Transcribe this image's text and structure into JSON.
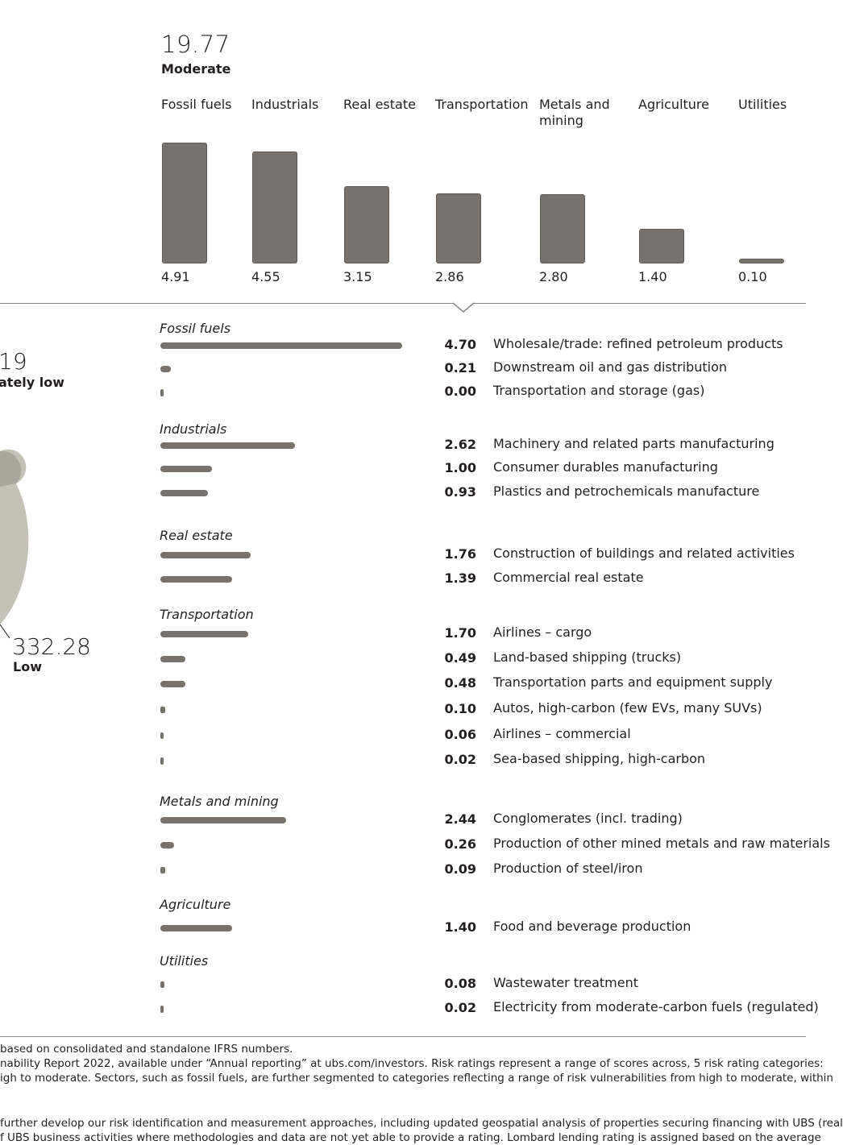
{
  "summary": {
    "total": "19.77",
    "rating": "Moderate"
  },
  "pie_labels": {
    "partial_value": "19",
    "partial_rating": "ately low",
    "low_value": "332.28",
    "low_rating": "Low"
  },
  "colors": {
    "bar": "#77736c",
    "pie_light": "#c4c1b6",
    "pie_mid": "#a8a59b",
    "divider": "#8a8782"
  },
  "chart_data": [
    {
      "type": "bar",
      "title": "19.77 Moderate",
      "categories": [
        "Fossil fuels",
        "Industrials",
        "Real estate",
        "Transportation",
        "Metals and mining",
        "Agriculture",
        "Utilities"
      ],
      "values": [
        4.91,
        4.55,
        3.15,
        2.86,
        2.8,
        1.4,
        0.1
      ],
      "value_labels": [
        "4.91",
        "4.55",
        "3.15",
        "2.86",
        "2.80",
        "1.40",
        "0.10"
      ],
      "ylim": [
        0,
        4.91
      ]
    },
    {
      "type": "bar",
      "orientation": "horizontal",
      "groups": [
        {
          "name": "Fossil fuels",
          "items": [
            {
              "value": 4.7,
              "label": "4.70",
              "name": "Wholesale/trade: refined petroleum products"
            },
            {
              "value": 0.21,
              "label": "0.21",
              "name": "Downstream oil and gas distribution"
            },
            {
              "value": 0.0,
              "label": "0.00",
              "name": "Transportation and storage (gas)"
            }
          ]
        },
        {
          "name": "Industrials",
          "items": [
            {
              "value": 2.62,
              "label": "2.62",
              "name": "Machinery and related parts manufacturing"
            },
            {
              "value": 1.0,
              "label": "1.00",
              "name": "Consumer durables manufacturing"
            },
            {
              "value": 0.93,
              "label": "0.93",
              "name": "Plastics and petrochemicals manufacture"
            }
          ]
        },
        {
          "name": "Real estate",
          "items": [
            {
              "value": 1.76,
              "label": "1.76",
              "name": "Construction of buildings and related activities"
            },
            {
              "value": 1.39,
              "label": "1.39",
              "name": "Commercial real estate"
            }
          ]
        },
        {
          "name": "Transportation",
          "items": [
            {
              "value": 1.7,
              "label": "1.70",
              "name": "Airlines – cargo"
            },
            {
              "value": 0.49,
              "label": "0.49",
              "name": "Land-based shipping (trucks)"
            },
            {
              "value": 0.48,
              "label": "0.48",
              "name": "Transportation parts and equipment supply"
            },
            {
              "value": 0.1,
              "label": "0.10",
              "name": "Autos, high-carbon (few EVs, many SUVs)"
            },
            {
              "value": 0.06,
              "label": "0.06",
              "name": "Airlines – commercial"
            },
            {
              "value": 0.02,
              "label": "0.02",
              "name": "Sea-based shipping, high-carbon"
            }
          ]
        },
        {
          "name": "Metals and mining",
          "items": [
            {
              "value": 2.44,
              "label": "2.44",
              "name": "Conglomerates (incl. trading)"
            },
            {
              "value": 0.26,
              "label": "0.26",
              "name": "Production of other mined metals and raw materials"
            },
            {
              "value": 0.09,
              "label": "0.09",
              "name": "Production of steel/iron"
            }
          ]
        },
        {
          "name": "Agriculture",
          "items": [
            {
              "value": 1.4,
              "label": "1.40",
              "name": "Food and beverage production"
            }
          ]
        },
        {
          "name": "Utilities",
          "items": [
            {
              "value": 0.08,
              "label": "0.08",
              "name": "Wastewater treatment"
            },
            {
              "value": 0.02,
              "label": "0.02",
              "name": "Electricity from moderate-carbon fuels (regulated)"
            }
          ]
        }
      ]
    }
  ],
  "footnotes": [
    "based on consolidated and standalone IFRS numbers.",
    "nability Report 2022, available under “Annual reporting” at ubs.com/investors. Risk ratings represent a range of scores across, 5 risk rating categories:",
    "igh to moderate. Sectors, such as fossil fuels, are further segmented to categories reflecting a range of risk vulnerabilities from high to moderate, within",
    "further develop our risk identification and measurement approaches, including updated geospatial analysis of properties securing financing with UBS (real",
    "f UBS business activities where methodologies and data are not yet able to provide a rating. Lombard lending rating is assigned based on the average"
  ]
}
